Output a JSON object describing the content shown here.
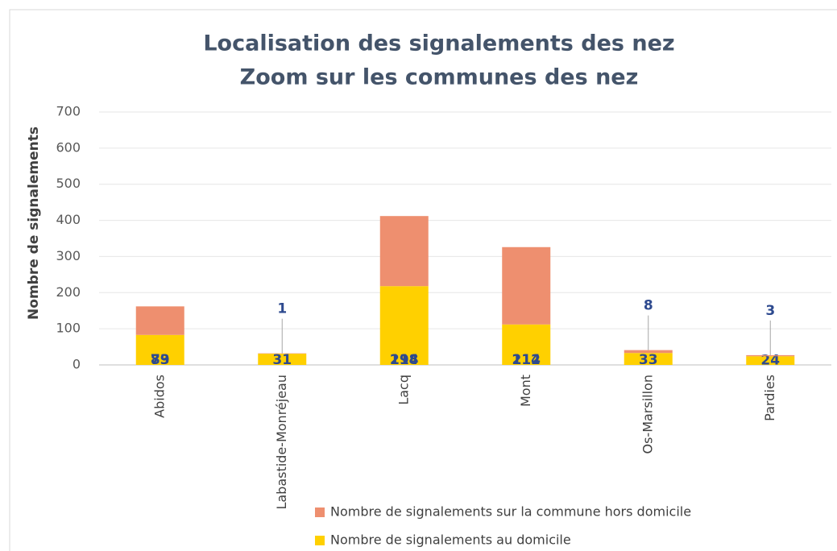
{
  "chart_data": {
    "type": "stacked_bar",
    "title": "Localisation des signalements des nez",
    "subtitle": "Zoom sur les communes des nez",
    "y_label": "Nombre de signalements",
    "categories": [
      "Abidos",
      "Labastide-Monréjeau",
      "Lacq",
      "Mont",
      "Os-Marsillon",
      "Pardies"
    ],
    "series": [
      {
        "name": "Nombre de signalements au domicile",
        "color": "#ffd000",
        "values": [
          83,
          31,
          218,
          112,
          33,
          24
        ]
      },
      {
        "name": "Nombre de signalements sur la commune hors domicile",
        "color": "#ee8f6f",
        "values": [
          79,
          1,
          194,
          214,
          8,
          3
        ]
      }
    ],
    "ylim": [
      0,
      700
    ],
    "yticks": [
      0,
      100,
      200,
      300,
      400,
      500,
      600,
      700
    ],
    "grid": true
  }
}
